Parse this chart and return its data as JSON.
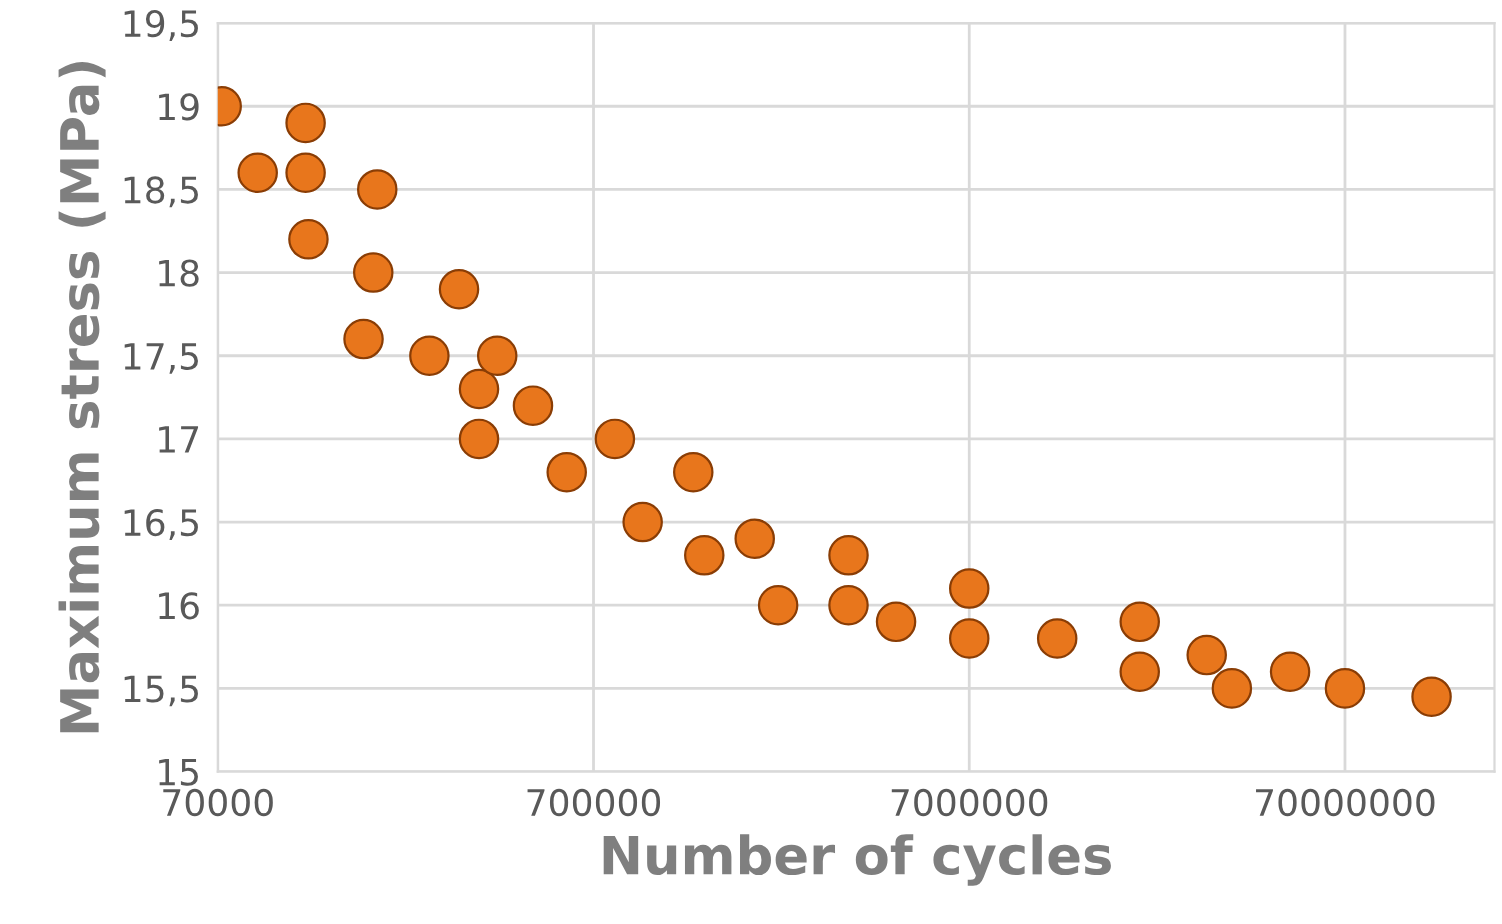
{
  "chart_data": {
    "type": "scatter",
    "xlabel": "Number of cycles",
    "ylabel": "Maximum stress (MPa)",
    "log": "x",
    "grid": true,
    "marker": "circle",
    "xlim": [
      70000,
      175000000
    ],
    "xticks": [
      70000,
      700000,
      7000000,
      70000000
    ],
    "ylim": [
      15,
      19.5
    ],
    "yticks": [
      15,
      {
        "value": 15.5,
        "label": "15,5"
      },
      16,
      {
        "value": 16.5,
        "label": "16,5"
      },
      17,
      {
        "value": 17.5,
        "label": "17,5"
      },
      18,
      {
        "value": 18.5,
        "label": "18,5"
      },
      19,
      {
        "value": 19.5,
        "label": "19,5"
      }
    ],
    "series": [
      {
        "color": "#e8761c",
        "x": [
          71700,
          89400,
          119900,
          119900,
          122000,
          186000,
          181500,
          171000,
          256000,
          307000,
          347000,
          388000,
          347000,
          483000,
          594000,
          798000,
          946000,
          1290000,
          1380000,
          1880000,
          2170000,
          3340000,
          3340000,
          4470000,
          7000000,
          7000000,
          12000000,
          19900000,
          19900000,
          30000000,
          35000000,
          50000000,
          70000000,
          119000000
        ],
        "values": [
          19.0,
          18.6,
          18.9,
          18.6,
          18.2,
          18.5,
          18.0,
          17.6,
          17.5,
          17.9,
          17.3,
          17.5,
          17.0,
          17.2,
          16.8,
          17.0,
          16.5,
          16.8,
          16.3,
          16.4,
          16.0,
          16.3,
          16.0,
          15.9,
          16.1,
          15.8,
          15.8,
          15.9,
          15.6,
          15.7,
          15.5,
          15.6,
          15.5,
          15.45
        ]
      }
    ]
  }
}
